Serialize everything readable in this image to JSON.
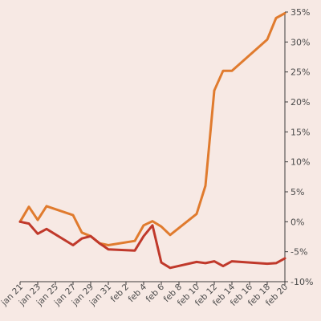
{
  "chart_data": {
    "type": "line",
    "title": "",
    "xlabel": "",
    "ylabel": "",
    "y_ticks": [
      "35%",
      "30%",
      "25%",
      "20%",
      "15%",
      "10%",
      "5%",
      "0%",
      "-5%",
      "-10%"
    ],
    "y_tick_values": [
      35,
      30,
      25,
      20,
      15,
      10,
      5,
      0,
      -5,
      -10
    ],
    "ylim": [
      -10,
      35
    ],
    "x_ticks": [
      "jan 21",
      "jan 23",
      "jan 25",
      "jan 27",
      "jan 29",
      "jan 31",
      "feb 2",
      "feb 4",
      "feb 6",
      "feb 8",
      "feb 10",
      "feb 12",
      "feb 14",
      "feb 16",
      "feb 18",
      "feb 20"
    ],
    "xlim": [
      "2025-01-21",
      "2025-02-20"
    ],
    "grid": false,
    "series": [
      {
        "color": "#e07b2e",
        "points": [
          [
            "2025-01-21",
            0.0
          ],
          [
            "2025-01-22",
            2.5
          ],
          [
            "2025-01-23",
            0.3
          ],
          [
            "2025-01-24",
            2.6
          ],
          [
            "2025-01-27",
            1.1
          ],
          [
            "2025-01-28",
            -1.8
          ],
          [
            "2025-01-29",
            -2.4
          ],
          [
            "2025-01-30",
            -3.6
          ],
          [
            "2025-01-31",
            -3.9
          ],
          [
            "2025-02-03",
            -3.2
          ],
          [
            "2025-02-04",
            -0.6
          ],
          [
            "2025-02-05",
            0.1
          ],
          [
            "2025-02-06",
            -0.8
          ],
          [
            "2025-02-07",
            -2.2
          ],
          [
            "2025-02-10",
            1.3
          ],
          [
            "2025-02-11",
            6.0
          ],
          [
            "2025-02-12",
            21.9
          ],
          [
            "2025-02-13",
            25.2
          ],
          [
            "2025-02-14",
            25.2
          ],
          [
            "2025-02-18",
            30.4
          ],
          [
            "2025-02-19",
            34.0
          ],
          [
            "2025-02-20",
            34.8
          ]
        ]
      },
      {
        "color": "#c0392b",
        "points": [
          [
            "2025-01-21",
            0.0
          ],
          [
            "2025-01-22",
            -0.3
          ],
          [
            "2025-01-23",
            -2.0
          ],
          [
            "2025-01-24",
            -1.2
          ],
          [
            "2025-01-27",
            -3.9
          ],
          [
            "2025-01-28",
            -2.8
          ],
          [
            "2025-01-29",
            -2.4
          ],
          [
            "2025-01-30",
            -3.6
          ],
          [
            "2025-01-31",
            -4.6
          ],
          [
            "2025-02-03",
            -4.8
          ],
          [
            "2025-02-04",
            -2.4
          ],
          [
            "2025-02-05",
            -0.6
          ],
          [
            "2025-02-06",
            -6.8
          ],
          [
            "2025-02-07",
            -7.7
          ],
          [
            "2025-02-10",
            -6.7
          ],
          [
            "2025-02-11",
            -6.9
          ],
          [
            "2025-02-12",
            -6.6
          ],
          [
            "2025-02-13",
            -7.4
          ],
          [
            "2025-02-14",
            -6.6
          ],
          [
            "2025-02-18",
            -7.0
          ],
          [
            "2025-02-19",
            -6.9
          ],
          [
            "2025-02-20",
            -6.1
          ]
        ]
      }
    ]
  }
}
